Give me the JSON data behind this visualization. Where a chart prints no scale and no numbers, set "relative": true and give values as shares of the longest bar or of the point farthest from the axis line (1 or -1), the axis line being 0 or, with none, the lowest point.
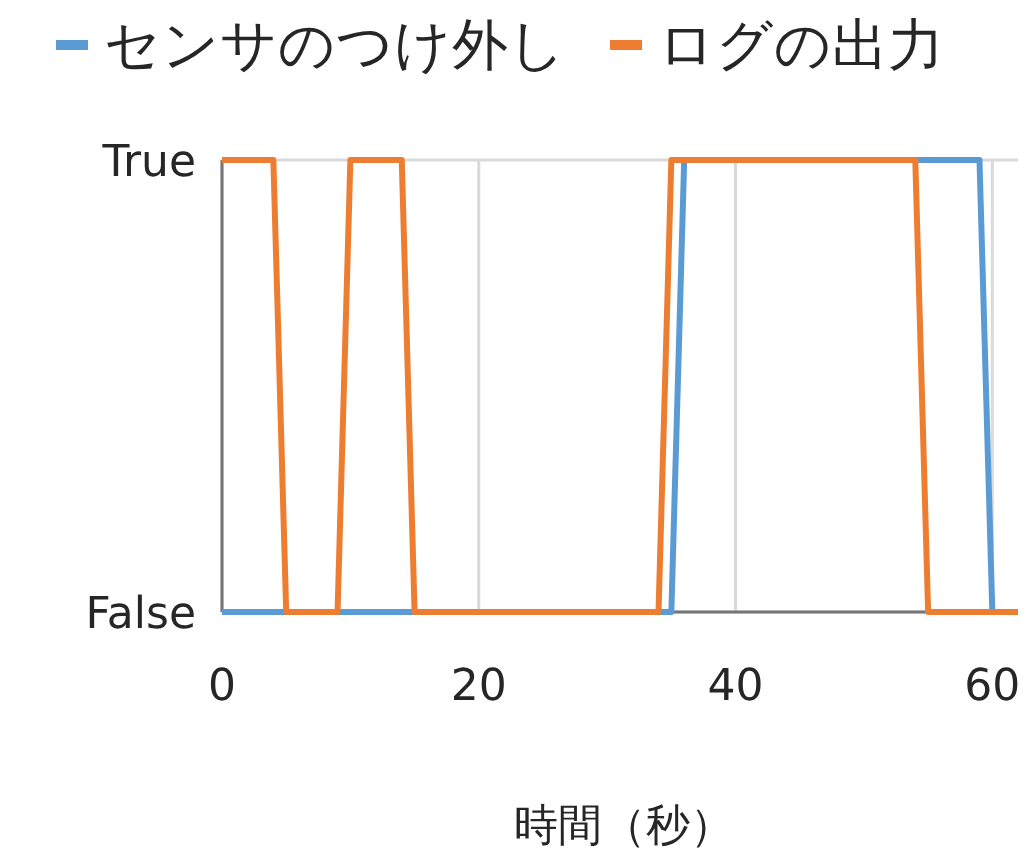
{
  "chart_data": {
    "type": "line",
    "xlabel": "時間（秒）",
    "xlim": [
      0,
      62
    ],
    "xticks": [
      0,
      20,
      40,
      60
    ],
    "relative": true,
    "annotations": [
      {
        "text": "True",
        "x": 0,
        "y": 1
      },
      {
        "text": "False",
        "x": 0,
        "y": 0
      }
    ],
    "grid": true,
    "legend": "top",
    "series": [
      {
        "name": "センサのつけ外し",
        "color": "#5b9bd5",
        "x": [
          0,
          35,
          36,
          59,
          60,
          62
        ],
        "values": [
          0,
          0,
          1,
          1,
          0,
          0
        ]
      },
      {
        "name": "ログの出力",
        "color": "#ed7d31",
        "x": [
          0,
          4,
          5,
          9,
          10,
          14,
          15,
          34,
          35,
          54,
          55,
          62
        ],
        "values": [
          1,
          1,
          0,
          0,
          1,
          1,
          0,
          0,
          1,
          1,
          0,
          0
        ]
      }
    ]
  }
}
